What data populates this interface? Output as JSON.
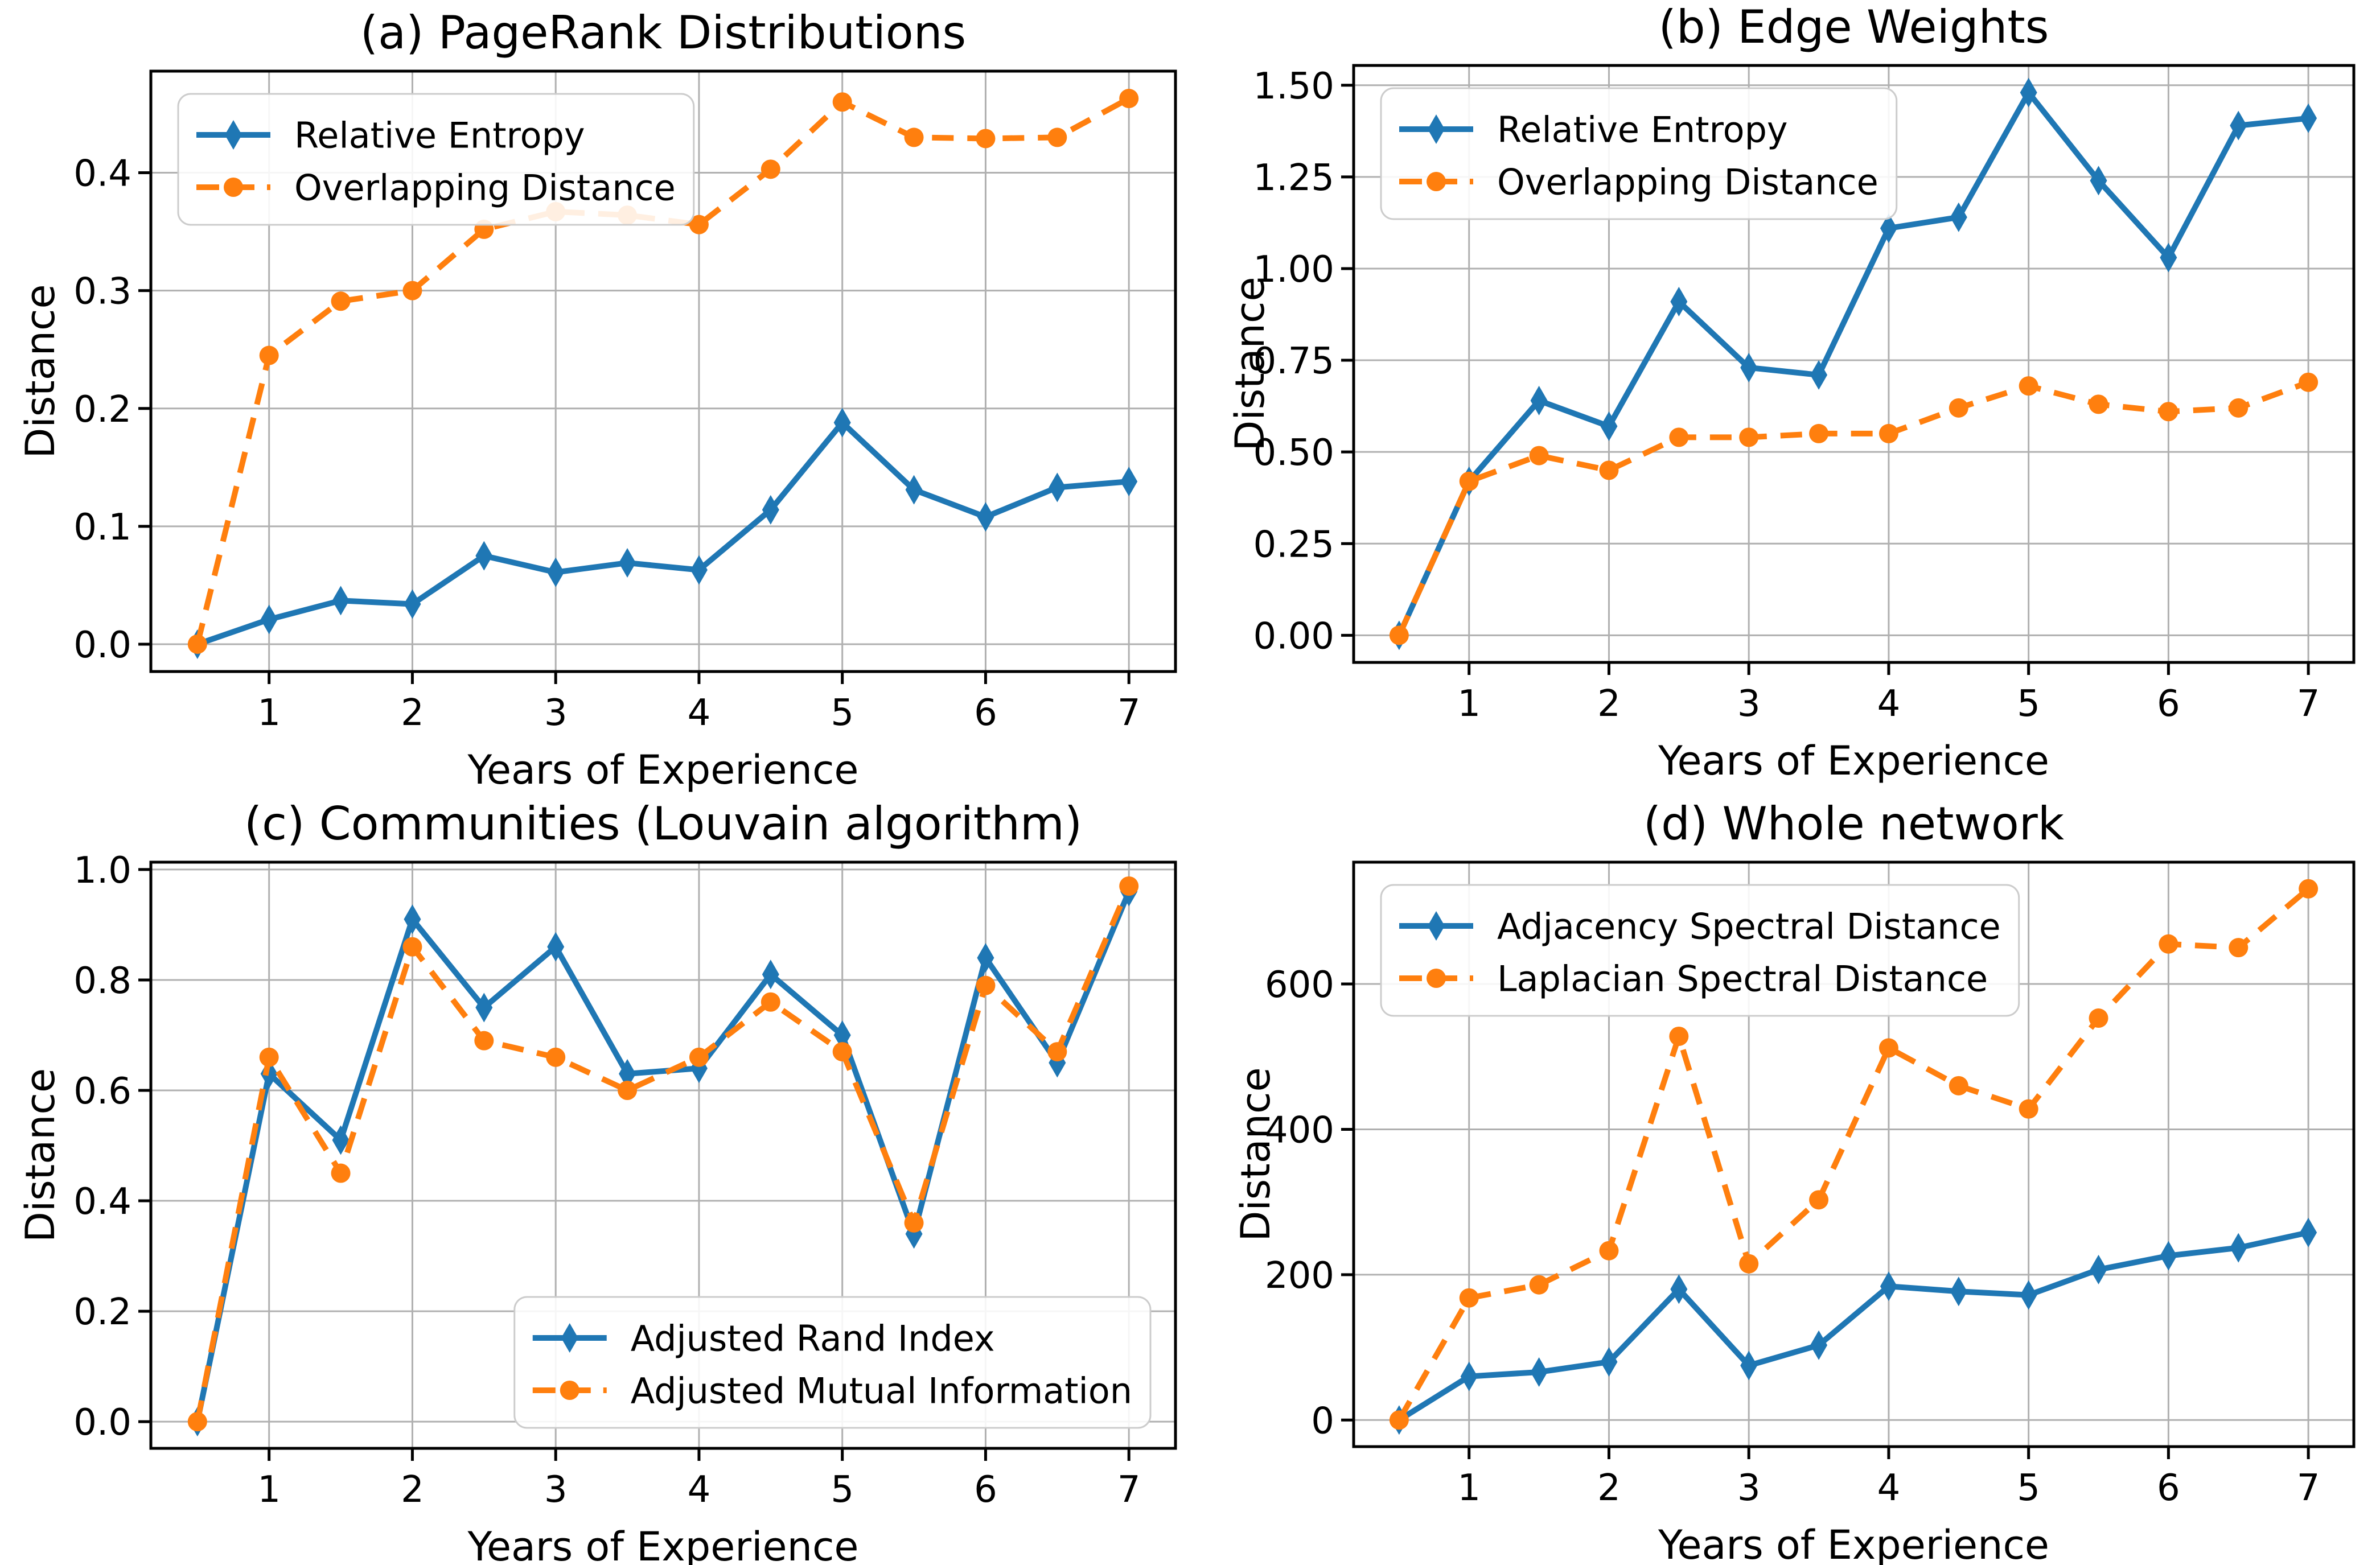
{
  "figure": {
    "background": "#ffffff",
    "grid_color": "#b0b0b0",
    "spine_color": "#000000",
    "legend_border_color": "#cccccc",
    "blue": "#1f77b4",
    "orange": "#ff7f0e"
  },
  "chart_data": [
    {
      "id": "a",
      "type": "line",
      "title": "(a) PageRank Distributions",
      "xlabel": "Years of Experience",
      "ylabel": "Distance",
      "x": [
        0.5,
        1,
        1.5,
        2,
        2.5,
        3,
        3.5,
        4,
        4.5,
        5,
        5.5,
        6,
        6.5,
        7
      ],
      "xlim": [
        0.175,
        7.325
      ],
      "ylim": [
        -0.0232,
        0.4862
      ],
      "xtick_values": [
        1,
        2,
        3,
        4,
        5,
        6,
        7
      ],
      "xtick_labels": [
        "1",
        "2",
        "3",
        "4",
        "5",
        "6",
        "7"
      ],
      "ytick_values": [
        0.0,
        0.1,
        0.2,
        0.3,
        0.4
      ],
      "ytick_labels": [
        "0.0",
        "0.1",
        "0.2",
        "0.3",
        "0.4"
      ],
      "grid": true,
      "legend_position": "upper-left",
      "series": [
        {
          "name": "Relative Entropy",
          "color": "#1f77b4",
          "marker": "thin-diamond",
          "linestyle": "solid",
          "values": [
            0.0,
            0.021,
            0.037,
            0.034,
            0.075,
            0.061,
            0.069,
            0.063,
            0.114,
            0.188,
            0.131,
            0.108,
            0.133,
            0.138
          ]
        },
        {
          "name": "Overlapping Distance",
          "color": "#ff7f0e",
          "marker": "circle",
          "linestyle": "dashed",
          "values": [
            0.0,
            0.245,
            0.291,
            0.3,
            0.352,
            0.367,
            0.364,
            0.356,
            0.403,
            0.46,
            0.43,
            0.429,
            0.43,
            0.463
          ]
        }
      ]
    },
    {
      "id": "b",
      "type": "line",
      "title": "(b) Edge Weights",
      "xlabel": "Years of Experience",
      "ylabel": "Distance",
      "x": [
        0.5,
        1,
        1.5,
        2,
        2.5,
        3,
        3.5,
        4,
        4.5,
        5,
        5.5,
        6,
        6.5,
        7
      ],
      "xlim": [
        0.175,
        7.325
      ],
      "ylim": [
        -0.074,
        1.554
      ],
      "xtick_values": [
        1,
        2,
        3,
        4,
        5,
        6,
        7
      ],
      "xtick_labels": [
        "1",
        "2",
        "3",
        "4",
        "5",
        "6",
        "7"
      ],
      "ytick_values": [
        0.0,
        0.25,
        0.5,
        0.75,
        1.0,
        1.25,
        1.5
      ],
      "ytick_labels": [
        "0.00",
        "0.25",
        "0.50",
        "0.75",
        "1.00",
        "1.25",
        "1.50"
      ],
      "grid": true,
      "legend_position": "upper-left",
      "series": [
        {
          "name": "Relative Entropy",
          "color": "#1f77b4",
          "marker": "thin-diamond",
          "linestyle": "solid",
          "values": [
            0.0,
            0.42,
            0.64,
            0.57,
            0.91,
            0.73,
            0.71,
            1.11,
            1.14,
            1.48,
            1.24,
            1.03,
            1.39,
            1.41
          ]
        },
        {
          "name": "Overlapping Distance",
          "color": "#ff7f0e",
          "marker": "circle",
          "linestyle": "dashed",
          "values": [
            0.0,
            0.42,
            0.49,
            0.45,
            0.54,
            0.54,
            0.55,
            0.55,
            0.62,
            0.68,
            0.63,
            0.61,
            0.62,
            0.69
          ]
        }
      ]
    },
    {
      "id": "c",
      "type": "line",
      "title": "(c) Communities (Louvain algorithm)",
      "xlabel": "Years of Experience",
      "ylabel": "Distance",
      "x": [
        0.5,
        1,
        1.5,
        2,
        2.5,
        3,
        3.5,
        4,
        4.5,
        5,
        5.5,
        6,
        6.5,
        7
      ],
      "xlim": [
        0.175,
        7.325
      ],
      "ylim": [
        -0.0483,
        1.0133
      ],
      "xtick_values": [
        1,
        2,
        3,
        4,
        5,
        6,
        7
      ],
      "xtick_labels": [
        "1",
        "2",
        "3",
        "4",
        "5",
        "6",
        "7"
      ],
      "ytick_values": [
        0.0,
        0.2,
        0.4,
        0.6,
        0.8,
        1.0
      ],
      "ytick_labels": [
        "0.0",
        "0.2",
        "0.4",
        "0.6",
        "0.8",
        "1.0"
      ],
      "grid": true,
      "legend_position": "lower-right",
      "series": [
        {
          "name": "Adjusted Rand Index",
          "color": "#1f77b4",
          "marker": "thin-diamond",
          "linestyle": "solid",
          "values": [
            0.0,
            0.63,
            0.51,
            0.91,
            0.75,
            0.86,
            0.63,
            0.64,
            0.81,
            0.7,
            0.34,
            0.84,
            0.65,
            0.96
          ]
        },
        {
          "name": "Adjusted Mutual Information",
          "color": "#ff7f0e",
          "marker": "circle",
          "linestyle": "dashed",
          "values": [
            0.0,
            0.66,
            0.45,
            0.86,
            0.69,
            0.66,
            0.6,
            0.66,
            0.76,
            0.67,
            0.36,
            0.79,
            0.67,
            0.97
          ]
        }
      ]
    },
    {
      "id": "d",
      "type": "line",
      "title": "(d) Whole network",
      "xlabel": "Years of Experience",
      "ylabel": "Distance",
      "x": [
        0.5,
        1,
        1.5,
        2,
        2.5,
        3,
        3.5,
        4,
        4.5,
        5,
        5.5,
        6,
        6.5,
        7
      ],
      "xlim": [
        0.175,
        7.325
      ],
      "ylim": [
        -36.6,
        767.6
      ],
      "xtick_values": [
        1,
        2,
        3,
        4,
        5,
        6,
        7
      ],
      "xtick_labels": [
        "1",
        "2",
        "3",
        "4",
        "5",
        "6",
        "7"
      ],
      "ytick_values": [
        0,
        200,
        400,
        600
      ],
      "ytick_labels": [
        "0",
        "200",
        "400",
        "600"
      ],
      "grid": true,
      "legend_position": "upper-left",
      "series": [
        {
          "name": "Adjacency Spectral Distance",
          "color": "#1f77b4",
          "marker": "thin-diamond",
          "linestyle": "solid",
          "values": [
            0,
            60,
            66,
            80,
            180,
            75,
            103,
            184,
            177,
            172,
            207,
            226,
            237,
            258
          ]
        },
        {
          "name": "Laplacian Spectral Distance",
          "color": "#ff7f0e",
          "marker": "circle",
          "linestyle": "dashed",
          "values": [
            0,
            168,
            186,
            233,
            528,
            215,
            303,
            512,
            460,
            428,
            553,
            655,
            650,
            731
          ]
        }
      ]
    }
  ]
}
